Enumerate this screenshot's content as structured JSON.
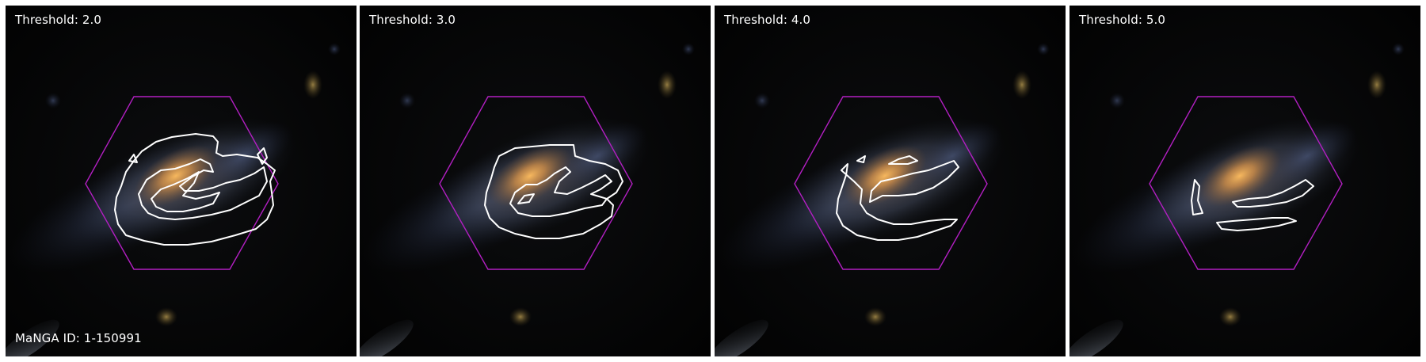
{
  "figure": {
    "panels": [
      {
        "threshold_label": "Threshold: 2.0"
      },
      {
        "threshold_label": "Threshold: 3.0"
      },
      {
        "threshold_label": "Threshold: 4.0"
      },
      {
        "threshold_label": "Threshold: 5.0"
      }
    ],
    "manga_id_label": "MaNGA ID: 1-150991"
  },
  "colors": {
    "background": "#030303",
    "hexagon": "#b21fc2",
    "contour": "#ffffff",
    "text": "#ffffff",
    "galaxy_core": "#f0a050"
  }
}
